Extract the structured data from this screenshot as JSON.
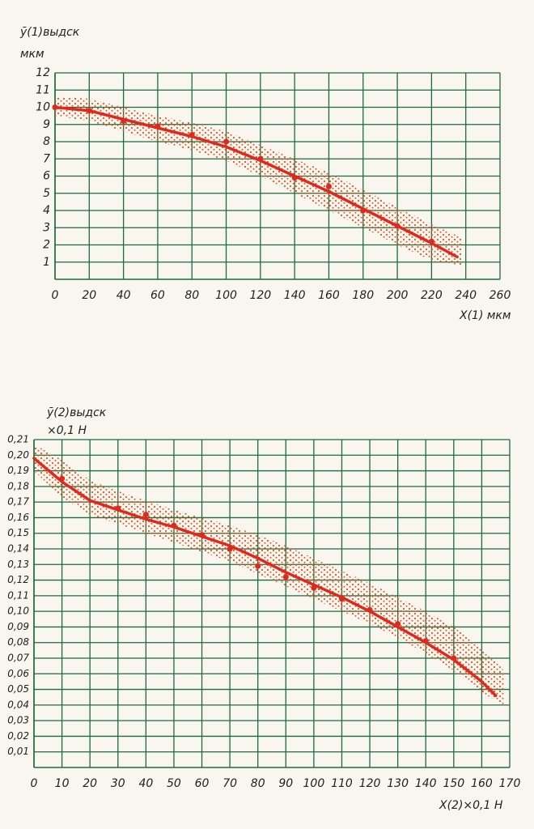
{
  "chart_data": [
    {
      "type": "line",
      "y_label": "ȳ(1)выдск",
      "y_unit": "мкм",
      "x_label": "X(1) мкм",
      "xlim": [
        0,
        260
      ],
      "xticks": [
        0,
        20,
        40,
        60,
        80,
        100,
        120,
        140,
        160,
        180,
        200,
        220,
        240,
        260
      ],
      "ylim": [
        0,
        12
      ],
      "yticks": [
        1,
        2,
        3,
        4,
        5,
        6,
        7,
        8,
        9,
        10,
        11,
        12
      ],
      "grid": true,
      "series": [
        {
          "type": "band",
          "color": "#e8501f",
          "x": [
            0,
            20,
            40,
            60,
            80,
            100,
            120,
            140,
            160,
            180,
            200,
            220,
            238
          ],
          "upper": [
            10.6,
            10.5,
            10.0,
            9.5,
            9.1,
            8.6,
            7.8,
            7.0,
            6.2,
            5.2,
            4.2,
            3.2,
            2.4
          ],
          "lower": [
            9.5,
            9.2,
            8.6,
            8.0,
            7.5,
            6.9,
            6.0,
            5.0,
            4.0,
            3.0,
            2.0,
            1.1,
            0.8
          ]
        },
        {
          "type": "line",
          "color": "#e0281c",
          "x": [
            0,
            20,
            40,
            60,
            80,
            100,
            120,
            140,
            160,
            180,
            200,
            220,
            235
          ],
          "values": [
            10,
            9.8,
            9.3,
            8.8,
            8.3,
            7.7,
            6.9,
            6.0,
            5.1,
            4.1,
            3.1,
            2.1,
            1.3
          ]
        },
        {
          "type": "points",
          "color": "#e0281c",
          "x": [
            0,
            20,
            40,
            60,
            80,
            100,
            120,
            140,
            160,
            180,
            200,
            220
          ],
          "values": [
            10,
            9.8,
            9.2,
            8.9,
            8.4,
            8.0,
            7.0,
            5.9,
            5.4,
            4.0,
            3.1,
            2.2
          ]
        }
      ]
    },
    {
      "type": "line",
      "y_label": "ȳ(2)выдск",
      "y_unit": "×0,1 Н",
      "x_label": "X(2)×0,1 Н",
      "xlim": [
        0,
        170
      ],
      "xticks": [
        0,
        10,
        20,
        30,
        40,
        50,
        60,
        70,
        80,
        90,
        100,
        110,
        120,
        130,
        140,
        150,
        160,
        170
      ],
      "ylim": [
        0,
        0.21
      ],
      "yticks": [
        {
          "value": 0.01,
          "label": "0,01"
        },
        {
          "value": 0.02,
          "label": "0,02"
        },
        {
          "value": 0.03,
          "label": "0,03"
        },
        {
          "value": 0.04,
          "label": "0,04"
        },
        {
          "value": 0.05,
          "label": "0,05"
        },
        {
          "value": 0.06,
          "label": "0,06"
        },
        {
          "value": 0.07,
          "label": "0,07"
        },
        {
          "value": 0.08,
          "label": "0,08"
        },
        {
          "value": 0.09,
          "label": "0,09"
        },
        {
          "value": 0.1,
          "label": "0,10"
        },
        {
          "value": 0.11,
          "label": "0,11"
        },
        {
          "value": 0.12,
          "label": "0,12"
        },
        {
          "value": 0.13,
          "label": "0,13"
        },
        {
          "value": 0.14,
          "label": "0,14"
        },
        {
          "value": 0.15,
          "label": "0,15"
        },
        {
          "value": 0.16,
          "label": "0,16"
        },
        {
          "value": 0.17,
          "label": "0,17"
        },
        {
          "value": 0.18,
          "label": "0,18"
        },
        {
          "value": 0.19,
          "label": "0,19"
        },
        {
          "value": 0.2,
          "label": "0,20"
        },
        {
          "value": 0.21,
          "label": "0,21"
        }
      ],
      "grid": true,
      "series": [
        {
          "type": "band",
          "color": "#e8501f",
          "x": [
            0,
            10,
            20,
            30,
            40,
            50,
            60,
            70,
            80,
            90,
            100,
            110,
            120,
            130,
            140,
            150,
            160,
            168
          ],
          "upper": [
            0.207,
            0.197,
            0.184,
            0.177,
            0.171,
            0.165,
            0.16,
            0.155,
            0.149,
            0.142,
            0.134,
            0.126,
            0.118,
            0.109,
            0.1,
            0.09,
            0.077,
            0.062
          ],
          "lower": [
            0.19,
            0.173,
            0.162,
            0.156,
            0.15,
            0.144,
            0.138,
            0.132,
            0.124,
            0.116,
            0.108,
            0.1,
            0.092,
            0.083,
            0.073,
            0.062,
            0.048,
            0.04
          ]
        },
        {
          "type": "line",
          "color": "#e0281c",
          "x": [
            0,
            10,
            20,
            30,
            40,
            50,
            60,
            70,
            80,
            90,
            100,
            110,
            120,
            130,
            140,
            150,
            160,
            165
          ],
          "values": [
            0.198,
            0.183,
            0.171,
            0.165,
            0.159,
            0.154,
            0.148,
            0.142,
            0.134,
            0.125,
            0.117,
            0.109,
            0.1,
            0.09,
            0.08,
            0.069,
            0.055,
            0.046
          ]
        },
        {
          "type": "points",
          "color": "#e0281c",
          "x": [
            10,
            30,
            40,
            50,
            60,
            70,
            80,
            90,
            100,
            110,
            120,
            130,
            140,
            150
          ],
          "values": [
            0.185,
            0.166,
            0.162,
            0.155,
            0.149,
            0.14,
            0.129,
            0.122,
            0.115,
            0.108,
            0.101,
            0.092,
            0.081,
            0.07
          ]
        }
      ]
    }
  ]
}
